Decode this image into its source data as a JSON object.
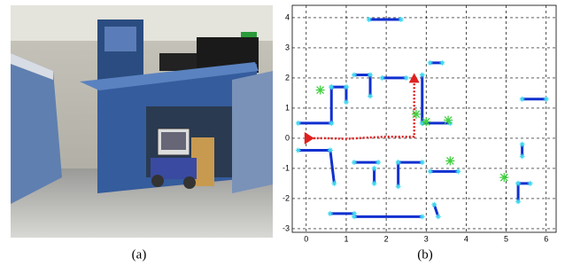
{
  "captions": {
    "a": "(a)",
    "b": "(b)"
  },
  "plot": {
    "xlim": [
      -0.35,
      6.25
    ],
    "ylim": [
      -3.12,
      4.41
    ],
    "xticks": [
      0,
      1,
      2,
      3,
      4,
      5,
      6
    ],
    "yticks": [
      -3,
      -2,
      -1,
      0,
      1,
      2,
      3,
      4
    ],
    "grid": true,
    "wall_color": "#1030d0",
    "trajectory_color": "#e02020",
    "landmark_color": "#40d040",
    "endpoint_color": "#40d8f0",
    "walls": [
      [
        1.57,
        3.94,
        2.37,
        3.94
      ],
      [
        -0.2,
        0.5,
        0.63,
        0.5
      ],
      [
        0.63,
        0.5,
        0.63,
        1.7
      ],
      [
        0.63,
        1.7,
        1.0,
        1.7
      ],
      [
        1.0,
        1.7,
        1.0,
        1.2
      ],
      [
        1.2,
        2.1,
        1.6,
        2.1
      ],
      [
        1.6,
        2.1,
        1.6,
        1.4
      ],
      [
        1.9,
        2.0,
        2.5,
        2.0
      ],
      [
        2.9,
        2.1,
        2.9,
        0.5
      ],
      [
        2.9,
        0.5,
        3.6,
        0.5
      ],
      [
        3.1,
        2.5,
        3.4,
        2.5
      ],
      [
        -0.2,
        -0.4,
        0.6,
        -0.4
      ],
      [
        0.6,
        -0.4,
        0.7,
        -1.5
      ],
      [
        0.6,
        -2.5,
        1.2,
        -2.5
      ],
      [
        1.2,
        -2.6,
        2.9,
        -2.6
      ],
      [
        1.2,
        -0.8,
        1.8,
        -0.8
      ],
      [
        2.3,
        -0.8,
        2.9,
        -0.8
      ],
      [
        2.3,
        -0.8,
        2.3,
        -1.6
      ],
      [
        3.1,
        -1.1,
        3.8,
        -1.1
      ],
      [
        3.2,
        -2.2,
        3.3,
        -2.6
      ],
      [
        5.3,
        -1.5,
        5.6,
        -1.5
      ],
      [
        5.3,
        -1.5,
        5.3,
        -2.1
      ],
      [
        5.4,
        1.3,
        6.0,
        1.3
      ],
      [
        5.4,
        -0.2,
        5.4,
        -0.6
      ],
      [
        1.7,
        -1.0,
        1.7,
        -1.5
      ]
    ],
    "trajectory": [
      [
        0,
        0
      ],
      [
        0.5,
        0
      ],
      [
        1,
        -0.02
      ],
      [
        1.5,
        0.02
      ],
      [
        2,
        0.05
      ],
      [
        2.7,
        0.05
      ],
      [
        2.7,
        1.9
      ]
    ],
    "landmarks": [
      [
        0.35,
        1.6
      ],
      [
        2.75,
        0.8
      ],
      [
        3.0,
        0.55
      ],
      [
        3.55,
        0.6
      ],
      [
        3.6,
        -0.75
      ],
      [
        4.95,
        -1.3
      ]
    ]
  }
}
